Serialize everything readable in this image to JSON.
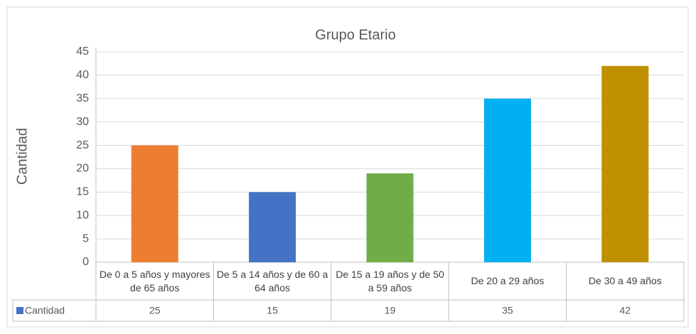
{
  "chart_data": {
    "type": "bar",
    "title": "Grupo Etario",
    "y_label": "Cantidad",
    "categories": [
      "De 0 a 5 años y mayores de 65 años",
      "De 5 a 14 años y de 60 a 64 años",
      "De 15 a 19 años y de 50 a 59 años",
      "De 20 a 29 años",
      "De 30 a 49 años"
    ],
    "series": [
      {
        "name": "Cantidad",
        "color": "#4472c4",
        "point_colors": [
          "#ed7d31",
          "#4472c4",
          "#70ad47",
          "#00b0f0",
          "#bf9000"
        ],
        "values": [
          25,
          15,
          19,
          35,
          42
        ]
      }
    ],
    "ylim": [
      0,
      45
    ],
    "yticks": [
      0,
      5,
      10,
      15,
      20,
      25,
      30,
      35,
      40,
      45
    ],
    "grid": true,
    "data_table": true
  }
}
